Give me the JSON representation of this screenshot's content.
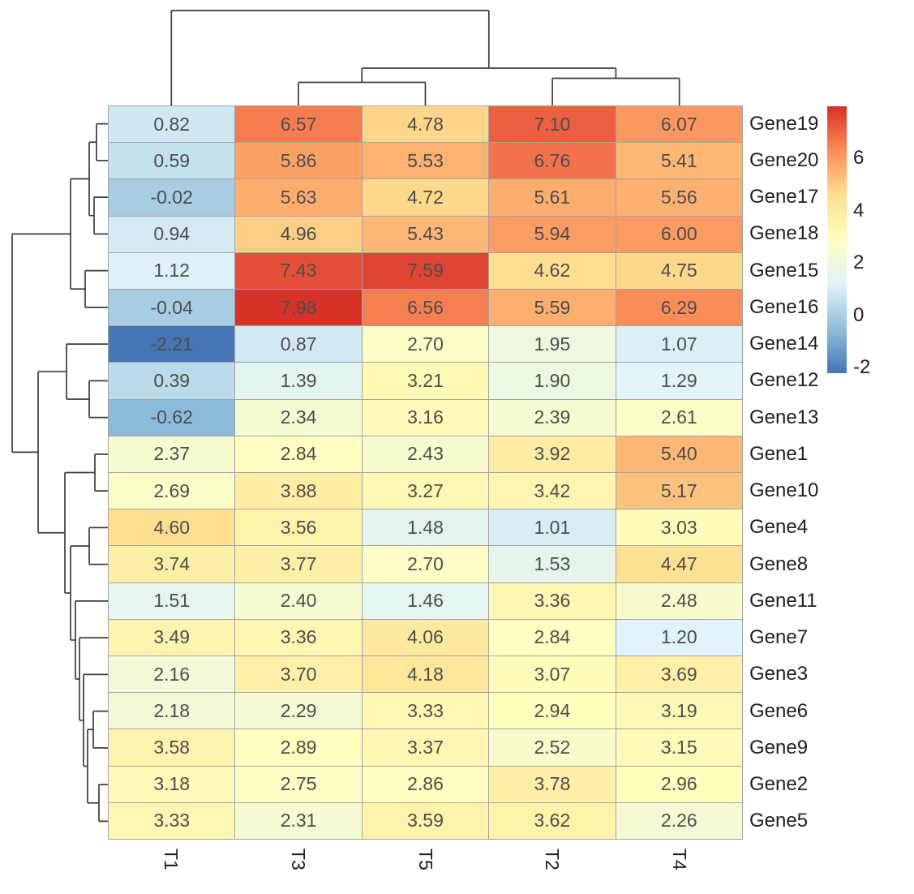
{
  "chart_data": {
    "type": "heatmap",
    "title": "",
    "columns": [
      "T1",
      "T3",
      "T5",
      "T2",
      "T4"
    ],
    "rows": [
      "Gene19",
      "Gene20",
      "Gene17",
      "Gene18",
      "Gene15",
      "Gene16",
      "Gene14",
      "Gene12",
      "Gene13",
      "Gene1",
      "Gene10",
      "Gene4",
      "Gene8",
      "Gene11",
      "Gene7",
      "Gene3",
      "Gene6",
      "Gene9",
      "Gene2",
      "Gene5"
    ],
    "values": [
      [
        "0.82",
        "6.57",
        "4.78",
        "7.10",
        "6.07"
      ],
      [
        "0.59",
        "5.86",
        "5.53",
        "6.76",
        "5.41"
      ],
      [
        "-0.02",
        "5.63",
        "4.72",
        "5.61",
        "5.56"
      ],
      [
        "0.94",
        "4.96",
        "5.43",
        "5.94",
        "6.00"
      ],
      [
        "1.12",
        "7.43",
        "7.59",
        "4.62",
        "4.75"
      ],
      [
        "-0.04",
        "7.98",
        "6.56",
        "5.59",
        "6.29"
      ],
      [
        "-2.21",
        "0.87",
        "2.70",
        "1.95",
        "1.07"
      ],
      [
        "0.39",
        "1.39",
        "3.21",
        "1.90",
        "1.29"
      ],
      [
        "-0.62",
        "2.34",
        "3.16",
        "2.39",
        "2.61"
      ],
      [
        "2.37",
        "2.84",
        "2.43",
        "3.92",
        "5.40"
      ],
      [
        "2.69",
        "3.88",
        "3.27",
        "3.42",
        "5.17"
      ],
      [
        "4.60",
        "3.56",
        "1.48",
        "1.01",
        "3.03"
      ],
      [
        "3.74",
        "3.77",
        "2.70",
        "1.53",
        "4.47"
      ],
      [
        "1.51",
        "2.40",
        "1.46",
        "3.36",
        "2.48"
      ],
      [
        "3.49",
        "3.36",
        "4.06",
        "2.84",
        "1.20"
      ],
      [
        "2.16",
        "3.70",
        "4.18",
        "3.07",
        "3.69"
      ],
      [
        "2.18",
        "2.29",
        "3.33",
        "2.94",
        "3.19"
      ],
      [
        "3.58",
        "2.89",
        "3.37",
        "2.52",
        "3.15"
      ],
      [
        "3.18",
        "2.75",
        "2.86",
        "3.78",
        "2.96"
      ],
      [
        "3.33",
        "2.31",
        "3.59",
        "3.62",
        "2.26"
      ]
    ],
    "legend": {
      "ticks": [
        "6",
        "4",
        "2",
        "0",
        "-2"
      ],
      "tick_values": [
        6,
        4,
        2,
        0,
        -2
      ],
      "domain_min": -2.21,
      "domain_max": 7.98,
      "position": "right"
    },
    "color_scale": [
      "#4575b4",
      "#91bfdb",
      "#e0f3f8",
      "#ffffbf",
      "#fee090",
      "#fc8d59",
      "#d73027"
    ],
    "clustered": true,
    "row_dendrogram": {
      "pos": 15,
      "children": [
        {
          "pos": 87,
          "children": [
            {
              "pos": 110,
              "children": [
                {
                  "pos": 119,
                  "children": [
                    {
                      "leaf": 0
                    },
                    {
                      "leaf": 1
                    }
                  ]
                },
                {
                  "pos": 116,
                  "children": [
                    {
                      "leaf": 2
                    },
                    {
                      "leaf": 3
                    }
                  ]
                }
              ]
            },
            {
              "pos": 105,
              "children": [
                {
                  "leaf": 4
                },
                {
                  "leaf": 5
                }
              ]
            }
          ]
        },
        {
          "pos": 47,
          "children": [
            {
              "pos": 82,
              "children": [
                {
                  "leaf": 6
                },
                {
                  "pos": 110,
                  "children": [
                    {
                      "leaf": 7
                    },
                    {
                      "leaf": 8
                    }
                  ]
                }
              ]
            },
            {
              "pos": 80,
              "children": [
                {
                  "pos": 117,
                  "children": [
                    {
                      "leaf": 9
                    },
                    {
                      "leaf": 10
                    }
                  ]
                },
                {
                  "pos": 87,
                  "children": [
                    {
                      "pos": 110,
                      "children": [
                        {
                          "leaf": 11
                        },
                        {
                          "leaf": 12
                        }
                      ]
                    },
                    {
                      "pos": 93,
                      "children": [
                        {
                          "leaf": 13
                        },
                        {
                          "pos": 98,
                          "children": [
                            {
                              "leaf": 14
                            },
                            {
                              "pos": 103,
                              "children": [
                                {
                                  "leaf": 15
                                },
                                {
                                  "pos": 108,
                                  "children": [
                                    {
                                      "pos": 115,
                                      "children": [
                                        {
                                          "leaf": 16
                                        },
                                        {
                                          "leaf": 17
                                        }
                                      ]
                                    },
                                    {
                                      "pos": 122,
                                      "children": [
                                        {
                                          "leaf": 18
                                        },
                                        {
                                          "leaf": 19
                                        }
                                      ]
                                    }
                                  ]
                                }
                              ]
                            }
                          ]
                        }
                      ]
                    }
                  ]
                }
              ]
            }
          ]
        }
      ]
    },
    "col_dendrogram": {
      "pos": 13,
      "children": [
        {
          "leaf": 0
        },
        {
          "pos": 84,
          "children": [
            {
              "pos": 101.5,
              "children": [
                {
                  "leaf": 1
                },
                {
                  "leaf": 2
                }
              ]
            },
            {
              "pos": 96.5,
              "children": [
                {
                  "leaf": 3
                },
                {
                  "leaf": 4
                }
              ]
            }
          ]
        }
      ]
    }
  },
  "style": {
    "cell_text_color": "#4d4d4d",
    "grid_border_color": "#a3a3a3",
    "label_text_color": "#1f1f1f",
    "dendrogram_line_color": "#3c3c3c",
    "background_color": "#ffffff"
  }
}
